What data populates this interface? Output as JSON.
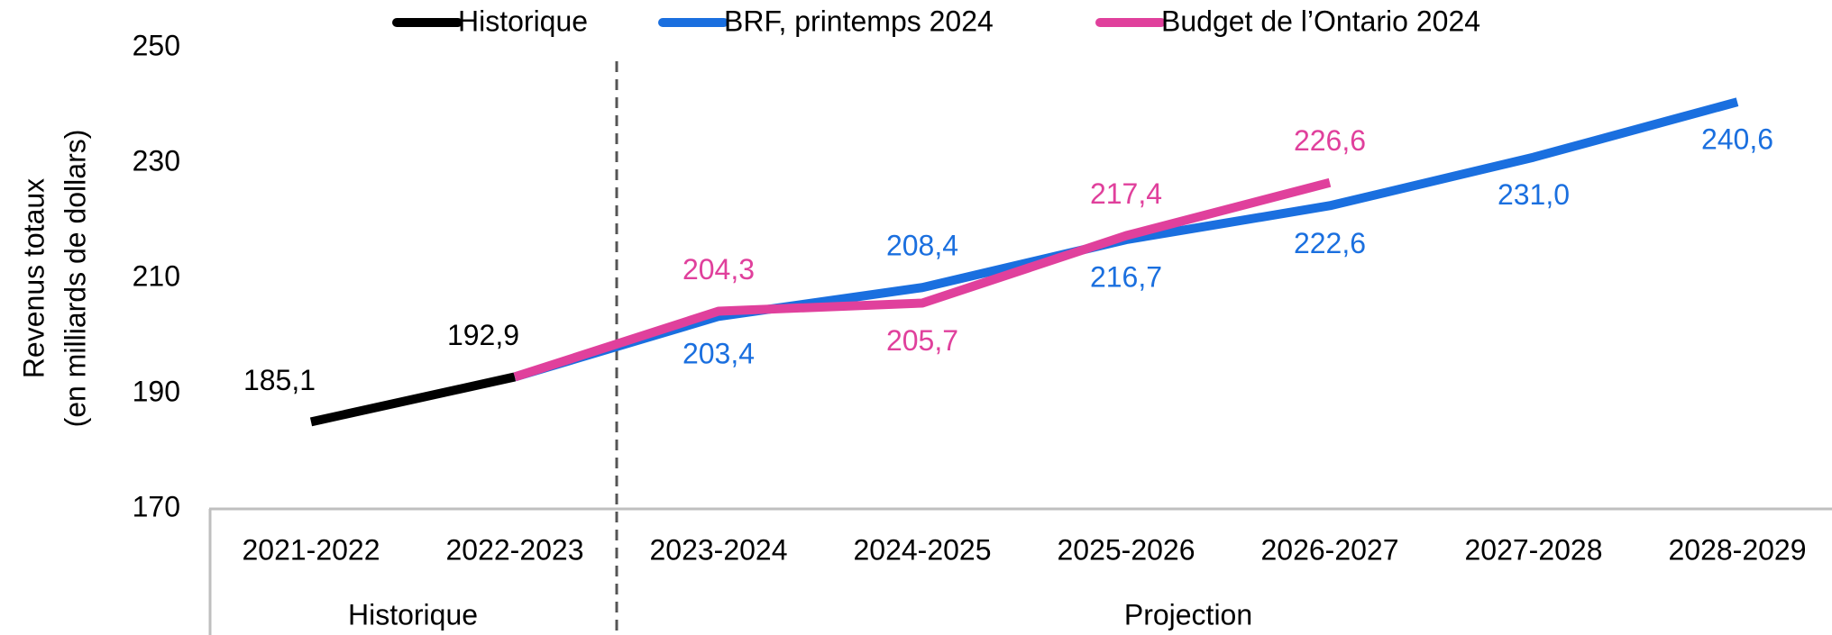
{
  "chart_data": {
    "type": "line",
    "y_label": [
      "Revenus totaux",
      "(en milliards de dollars)"
    ],
    "categories": [
      "2021-2022",
      "2022-2023",
      "2023-2024",
      "2024-2025",
      "2025-2026",
      "2026-2027",
      "2027-2028",
      "2028-2029"
    ],
    "groups": [
      {
        "label": "Historique",
        "span": 2
      },
      {
        "label": "Projection",
        "span": 6
      }
    ],
    "series": [
      {
        "name": "Historique",
        "color": "#000000",
        "values": [
          185.1,
          192.9,
          null,
          null,
          null,
          null,
          null,
          null
        ],
        "value_labels": [
          "185,1",
          "192,9",
          null,
          null,
          null,
          null,
          null,
          null
        ]
      },
      {
        "name": "BRF, printemps 2024",
        "color": "#1a6fdf",
        "values": [
          null,
          192.9,
          203.4,
          208.4,
          216.7,
          222.6,
          231.0,
          240.6
        ],
        "value_labels": [
          null,
          null,
          "203,4",
          "208,4",
          "216,7",
          "222,6",
          "231,0",
          "240,6"
        ]
      },
      {
        "name": "Budget de l’Ontario 2024",
        "color": "#e0409c",
        "values": [
          null,
          192.9,
          204.3,
          205.7,
          217.4,
          226.6,
          null,
          null
        ],
        "value_labels": [
          null,
          null,
          "204,3",
          "205,7",
          "217,4",
          "226,6",
          null,
          null
        ]
      }
    ],
    "ylim": [
      170,
      250
    ],
    "yticks": [
      170,
      190,
      210,
      230,
      250
    ],
    "grid": false,
    "legend": "top"
  }
}
